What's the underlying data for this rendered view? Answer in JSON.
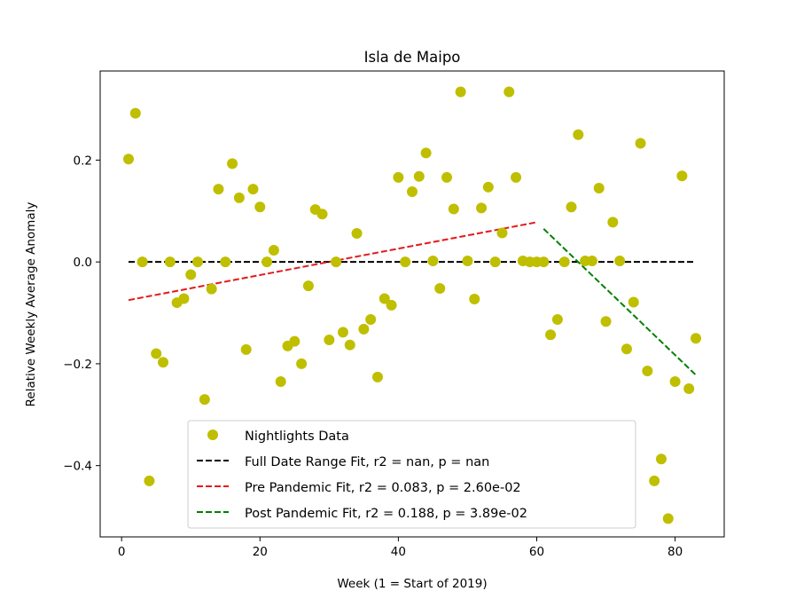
{
  "chart_data": {
    "type": "scatter",
    "title": "Isla de Maipo",
    "xlabel": "Week (1 = Start of 2019)",
    "ylabel": "Relative Weekly Average Anomaly",
    "xlim": [
      -3.1,
      87.1
    ],
    "ylim": [
      -0.54,
      0.375
    ],
    "xticks": [
      0,
      20,
      40,
      60,
      80
    ],
    "xtick_labels": [
      "0",
      "20",
      "40",
      "60",
      "80"
    ],
    "yticks": [
      -0.4,
      -0.2,
      0.0,
      0.2
    ],
    "ytick_labels": [
      "−0.4",
      "−0.2",
      "0.0",
      "0.2"
    ],
    "grid": false,
    "legend_position": "lower-center",
    "colors": {
      "data": "#bfbf00",
      "full_fit": "#000000",
      "pre_fit": "#e31a1c",
      "post_fit": "#008000"
    },
    "series": [
      {
        "name": "Nightlights Data",
        "kind": "scatter",
        "x": [
          1,
          2,
          3,
          4,
          5,
          6,
          7,
          8,
          9,
          10,
          11,
          12,
          13,
          14,
          15,
          16,
          17,
          18,
          19,
          20,
          21,
          22,
          23,
          24,
          25,
          26,
          27,
          28,
          29,
          30,
          31,
          32,
          33,
          34,
          35,
          36,
          37,
          38,
          39,
          40,
          41,
          42,
          43,
          44,
          45,
          46,
          47,
          48,
          49,
          50,
          51,
          52,
          53,
          54,
          55,
          56,
          57,
          58,
          59,
          60,
          61,
          62,
          63,
          64,
          65,
          66,
          67,
          68,
          69,
          70,
          71,
          72,
          73,
          74,
          75,
          76,
          77,
          78,
          79,
          80,
          81,
          82,
          83
        ],
        "y": [
          0.202,
          0.292,
          0.0,
          -0.43,
          -0.18,
          -0.197,
          0.0,
          -0.08,
          -0.072,
          -0.025,
          0.0,
          -0.27,
          -0.053,
          0.143,
          0.0,
          0.193,
          0.126,
          -0.172,
          0.143,
          0.108,
          0.0,
          0.023,
          -0.235,
          -0.165,
          -0.156,
          -0.2,
          -0.047,
          0.103,
          0.094,
          -0.153,
          0.0,
          -0.138,
          -0.163,
          0.056,
          -0.132,
          -0.113,
          -0.226,
          -0.072,
          -0.085,
          0.166,
          0.0,
          0.138,
          0.168,
          0.214,
          0.002,
          -0.052,
          0.166,
          0.104,
          0.334,
          0.002,
          -0.073,
          0.106,
          0.147,
          0.0,
          0.057,
          0.334,
          0.166,
          0.002,
          0.0,
          0.0,
          0.0,
          -0.143,
          -0.113,
          0.0,
          0.108,
          0.25,
          0.002,
          0.002,
          0.145,
          -0.117,
          0.078,
          0.002,
          -0.171,
          -0.079,
          0.233,
          -0.214,
          -0.43,
          -0.387,
          -0.504,
          -0.235,
          0.169,
          -0.249,
          -0.15
        ]
      },
      {
        "name": "Full Date Range Fit, r2 = nan, p = nan",
        "kind": "line",
        "x": [
          1,
          83
        ],
        "y": [
          0.0,
          0.0
        ]
      },
      {
        "name": "Pre Pandemic Fit, r2 = 0.083, p = 2.60e-02",
        "kind": "line",
        "x": [
          1,
          60
        ],
        "y": [
          -0.075,
          0.078
        ]
      },
      {
        "name": "Post Pandemic Fit, r2 = 0.188, p = 3.89e-02",
        "kind": "line",
        "x": [
          61,
          83
        ],
        "y": [
          0.065,
          -0.222
        ]
      }
    ]
  }
}
